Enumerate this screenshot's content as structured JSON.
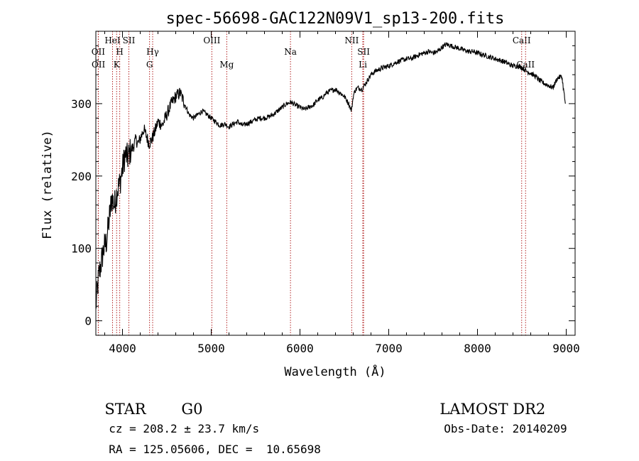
{
  "chart_data": {
    "type": "line",
    "title": "spec-56698-GAC122N09V1_sp13-200.fits",
    "xlabel": "Wavelength (Å)",
    "ylabel": "Flux (relative)",
    "xlim": [
      3700,
      9100
    ],
    "ylim": [
      -20,
      400
    ],
    "x_ticks": [
      4000,
      5000,
      6000,
      7000,
      8000,
      9000
    ],
    "x_tick_labels": [
      "4000",
      "5000",
      "6000",
      "7000",
      "8000",
      "9000"
    ],
    "y_ticks": [
      0,
      100,
      200,
      300
    ],
    "y_tick_labels": [
      "0",
      "100",
      "200",
      "300"
    ],
    "grid": false,
    "line_color": "#000000",
    "marker_color": "#b22222",
    "series": [
      {
        "x": [
          3700,
          3730,
          3760,
          3790,
          3820,
          3850,
          3880,
          3910,
          3940,
          3970,
          4000,
          4030,
          4060,
          4090,
          4120,
          4150,
          4180,
          4210,
          4240,
          4270,
          4300,
          4330,
          4360,
          4400,
          4450,
          4500,
          4550,
          4600,
          4650,
          4700,
          4750,
          4800,
          4850,
          4900,
          4950,
          5000,
          5050,
          5100,
          5150,
          5200,
          5250,
          5300,
          5350,
          5400,
          5450,
          5500,
          5550,
          5600,
          5650,
          5700,
          5750,
          5800,
          5850,
          5900,
          5950,
          6000,
          6050,
          6100,
          6150,
          6200,
          6250,
          6300,
          6350,
          6400,
          6450,
          6500,
          6550,
          6580,
          6600,
          6620,
          6650,
          6700,
          6750,
          6800,
          6850,
          6900,
          6950,
          7000,
          7050,
          7100,
          7150,
          7200,
          7250,
          7300,
          7350,
          7400,
          7450,
          7500,
          7550,
          7600,
          7650,
          7700,
          7750,
          7800,
          7850,
          7900,
          7950,
          8000,
          8050,
          8100,
          8150,
          8200,
          8250,
          8300,
          8350,
          8400,
          8450,
          8500,
          8550,
          8600,
          8650,
          8700,
          8750,
          8800,
          8850,
          8900,
          8950,
          8990
        ],
        "y": [
          20,
          60,
          80,
          100,
          110,
          140,
          170,
          160,
          180,
          190,
          210,
          230,
          225,
          235,
          240,
          250,
          245,
          255,
          265,
          255,
          245,
          250,
          260,
          275,
          270,
          285,
          300,
          310,
          315,
          300,
          285,
          280,
          285,
          290,
          285,
          280,
          275,
          270,
          272,
          268,
          272,
          275,
          270,
          272,
          275,
          278,
          280,
          280,
          282,
          285,
          290,
          295,
          300,
          302,
          298,
          295,
          292,
          295,
          298,
          305,
          308,
          315,
          318,
          320,
          315,
          310,
          300,
          290,
          310,
          318,
          322,
          320,
          330,
          340,
          345,
          348,
          350,
          352,
          355,
          358,
          360,
          362,
          362,
          365,
          368,
          370,
          372,
          370,
          372,
          378,
          382,
          380,
          378,
          376,
          374,
          372,
          372,
          370,
          368,
          366,
          364,
          362,
          360,
          358,
          355,
          352,
          352,
          350,
          345,
          342,
          338,
          332,
          328,
          325,
          322,
          335,
          338,
          300
        ]
      }
    ],
    "line_markers": [
      {
        "label": "OII",
        "wavelength": 3727,
        "row": 2
      },
      {
        "label": "OII",
        "wavelength": 3729,
        "row": 3
      },
      {
        "label": "HeI",
        "wavelength": 3888,
        "row": 1
      },
      {
        "label": "SII",
        "wavelength": 4072,
        "row": 1
      },
      {
        "label": "H",
        "wavelength": 3969,
        "row": 2
      },
      {
        "label": "K",
        "wavelength": 3934,
        "row": 3
      },
      {
        "label": "Hγ",
        "wavelength": 4340,
        "row": 2
      },
      {
        "label": "G",
        "wavelength": 4305,
        "row": 3
      },
      {
        "label": "OIII",
        "wavelength": 5007,
        "row": 1
      },
      {
        "label": "Mg",
        "wavelength": 5175,
        "row": 3
      },
      {
        "label": "Na",
        "wavelength": 5893,
        "row": 2
      },
      {
        "label": "NII",
        "wavelength": 6583,
        "row": 1
      },
      {
        "label": "Li",
        "wavelength": 6708,
        "row": 3
      },
      {
        "label": "SII",
        "wavelength": 6717,
        "row": 2
      },
      {
        "label": "CaII",
        "wavelength": 8498,
        "row": 1
      },
      {
        "label": "CaII",
        "wavelength": 8542,
        "row": 3
      }
    ]
  },
  "footer": {
    "class_label": "STAR",
    "subclass": "G0",
    "survey": "LAMOST DR2",
    "redshift": "cz = 208.2 ± 23.7 km/s",
    "obs_date": "Obs-Date: 20140209",
    "coords": "RA = 125.05606, DEC =  10.65698"
  }
}
